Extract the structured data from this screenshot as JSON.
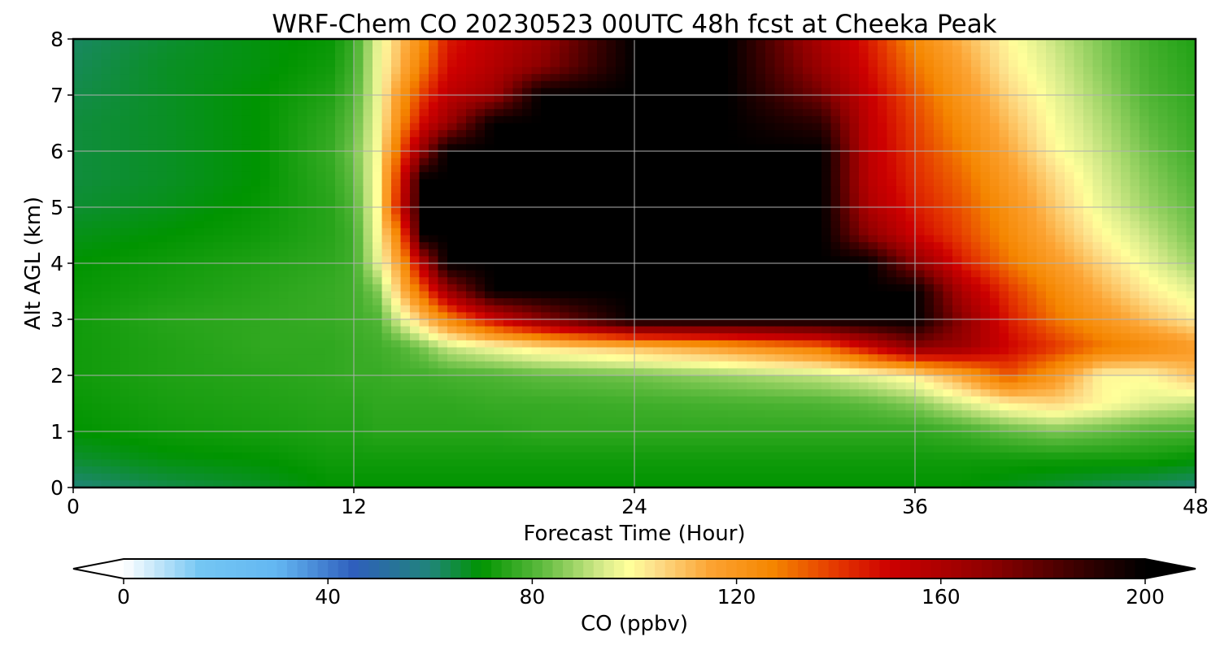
{
  "chart_data": {
    "type": "heatmap",
    "title": "WRF-Chem CO  20230523 00UTC 48h fcst at Cheeka Peak",
    "xlabel": "Forecast Time (Hour)",
    "ylabel": "Alt AGL (km)",
    "xlim": [
      0,
      48
    ],
    "ylim": [
      0,
      8
    ],
    "xticks": [
      0,
      12,
      24,
      36,
      48
    ],
    "yticks": [
      0,
      1,
      2,
      3,
      4,
      5,
      6,
      7,
      8
    ],
    "grid": true,
    "x": [
      0,
      4,
      8,
      11,
      12,
      13,
      14,
      15,
      16,
      18,
      20,
      24,
      28,
      32,
      34,
      36,
      38,
      40,
      42,
      44,
      46,
      48
    ],
    "y": [
      0,
      0.5,
      1,
      1.5,
      2,
      2.5,
      3,
      3.5,
      4,
      4.5,
      5,
      5.5,
      6,
      6.5,
      7,
      7.5,
      8
    ],
    "z": [
      [
        60,
        64,
        67,
        70,
        70,
        70,
        70,
        70,
        70,
        70,
        70,
        70,
        70,
        70,
        70,
        70,
        70,
        68,
        66,
        64,
        62,
        60
      ],
      [
        66,
        69,
        70,
        72,
        72,
        72,
        72,
        72,
        72,
        72,
        72,
        72,
        72,
        72,
        72,
        72,
        72,
        72,
        72,
        72,
        72,
        70
      ],
      [
        70,
        72,
        73,
        74,
        74,
        75,
        75,
        75,
        75,
        75,
        76,
        76,
        76,
        76,
        76,
        76,
        78,
        82,
        85,
        83,
        80,
        79
      ],
      [
        71,
        73,
        74,
        75,
        75,
        76,
        76,
        76,
        76,
        77,
        77,
        78,
        79,
        80,
        82,
        86,
        94,
        102,
        106,
        100,
        95,
        92
      ],
      [
        72,
        74,
        75,
        76,
        77,
        77,
        78,
        78,
        79,
        80,
        82,
        84,
        88,
        92,
        96,
        102,
        116,
        135,
        120,
        100,
        100,
        110
      ],
      [
        72,
        74,
        76,
        76,
        77,
        78,
        80,
        85,
        92,
        98,
        103,
        110,
        118,
        130,
        150,
        170,
        165,
        150,
        140,
        130,
        125,
        118
      ],
      [
        72,
        75,
        76,
        77,
        78,
        80,
        95,
        110,
        125,
        150,
        170,
        200,
        200,
        200,
        200,
        200,
        170,
        145,
        130,
        120,
        110,
        102
      ],
      [
        71,
        73,
        75,
        77,
        78,
        85,
        110,
        135,
        165,
        200,
        200,
        200,
        200,
        200,
        200,
        200,
        160,
        140,
        125,
        112,
        102,
        95
      ],
      [
        70,
        72,
        74,
        76,
        78,
        95,
        118,
        160,
        200,
        200,
        200,
        200,
        200,
        200,
        200,
        170,
        145,
        130,
        118,
        106,
        96,
        88
      ],
      [
        68,
        70,
        72,
        75,
        78,
        98,
        130,
        200,
        200,
        200,
        200,
        200,
        200,
        200,
        170,
        150,
        138,
        125,
        112,
        100,
        92,
        84
      ],
      [
        66,
        68,
        71,
        75,
        80,
        99,
        150,
        200,
        200,
        200,
        200,
        200,
        200,
        200,
        160,
        145,
        135,
        122,
        108,
        96,
        88,
        82
      ],
      [
        65,
        67,
        70,
        76,
        82,
        99,
        145,
        200,
        200,
        200,
        200,
        200,
        200,
        200,
        156,
        142,
        132,
        118,
        105,
        94,
        86,
        80
      ],
      [
        65,
        67,
        70,
        77,
        84,
        98,
        135,
        170,
        200,
        200,
        200,
        200,
        200,
        200,
        155,
        140,
        128,
        114,
        100,
        92,
        84,
        78
      ],
      [
        65,
        67,
        70,
        76,
        82,
        97,
        125,
        150,
        165,
        200,
        200,
        200,
        200,
        190,
        154,
        138,
        124,
        110,
        98,
        90,
        82,
        77
      ],
      [
        64,
        67,
        70,
        74,
        80,
        96,
        120,
        140,
        155,
        165,
        200,
        200,
        200,
        175,
        152,
        135,
        120,
        106,
        96,
        88,
        80,
        76
      ],
      [
        63,
        67,
        69,
        72,
        78,
        96,
        112,
        130,
        148,
        158,
        170,
        200,
        200,
        165,
        148,
        130,
        116,
        102,
        94,
        86,
        79,
        75
      ],
      [
        62,
        66,
        69,
        71,
        77,
        95,
        110,
        125,
        145,
        155,
        165,
        200,
        200,
        160,
        145,
        125,
        112,
        100,
        92,
        85,
        78,
        74
      ]
    ],
    "colorbar": {
      "label": "CO  (ppbv)",
      "min": 0,
      "max": 200,
      "ticks": [
        0,
        40,
        80,
        120,
        160,
        200
      ],
      "extend": "both",
      "stops": [
        {
          "v": 0,
          "c": "#ffffff"
        },
        {
          "v": 15,
          "c": "#74c6f3"
        },
        {
          "v": 30,
          "c": "#63b7f2"
        },
        {
          "v": 45,
          "c": "#2f5fbd"
        },
        {
          "v": 60,
          "c": "#20857a"
        },
        {
          "v": 70,
          "c": "#009400"
        },
        {
          "v": 82,
          "c": "#5fbb3f"
        },
        {
          "v": 94,
          "c": "#d9ec8c"
        },
        {
          "v": 99,
          "c": "#ffff9a"
        },
        {
          "v": 104,
          "c": "#fde08c"
        },
        {
          "v": 115,
          "c": "#fca332"
        },
        {
          "v": 127,
          "c": "#f58600"
        },
        {
          "v": 140,
          "c": "#e43500"
        },
        {
          "v": 150,
          "c": "#cd0000"
        },
        {
          "v": 170,
          "c": "#8c0000"
        },
        {
          "v": 190,
          "c": "#2b0000"
        },
        {
          "v": 200,
          "c": "#000000"
        }
      ],
      "extend_low_color": "#ffffff",
      "extend_high_color": "#000000"
    }
  }
}
